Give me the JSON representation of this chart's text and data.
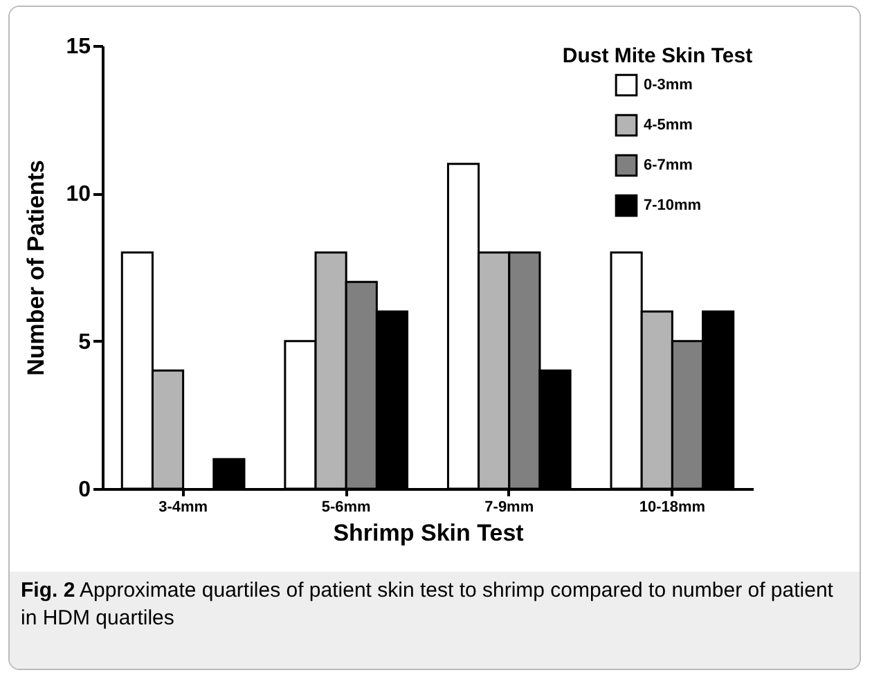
{
  "chart_data": {
    "type": "bar",
    "xlabel": "Shrimp Skin Test",
    "ylabel": "Number of Patients",
    "legend_title": "Dust Mite Skin Test",
    "legend": "top right",
    "categories": [
      "3-4mm",
      "5-6mm",
      "7-9mm",
      "10-18mm"
    ],
    "series": [
      {
        "name": "0-3mm",
        "color": "#ffffff",
        "values": [
          8,
          5,
          11,
          8
        ]
      },
      {
        "name": "4-5mm",
        "color": "#b4b4b4",
        "values": [
          4,
          8,
          8,
          6
        ]
      },
      {
        "name": "6-7mm",
        "color": "#808080",
        "values": [
          null,
          7,
          8,
          5
        ]
      },
      {
        "name": "7-10mm",
        "color": "#000000",
        "values": [
          1,
          6,
          4,
          6
        ]
      }
    ],
    "ylim": [
      0,
      15
    ],
    "yticks": [
      0,
      5,
      10,
      15
    ],
    "grid": false,
    "annotations": [
      "Fig. 2",
      "Approximate quartiles of patient skin test to shrimp compared to number of patient in HDM quartiles"
    ]
  }
}
